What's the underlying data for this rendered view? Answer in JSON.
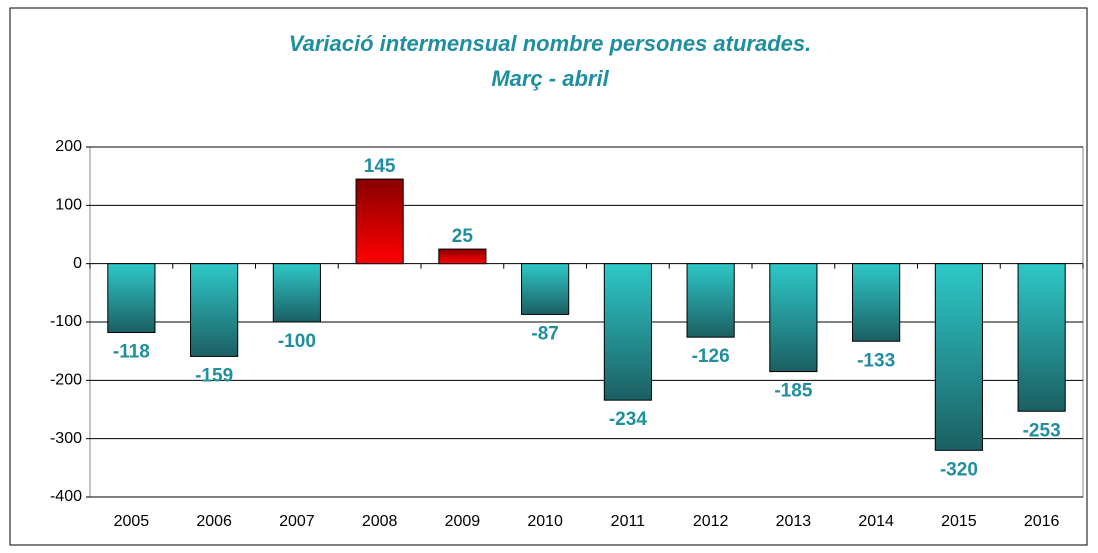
{
  "chart_data": {
    "type": "bar",
    "title": "Variació intermensual nombre persones aturades.",
    "subtitle": "Març - abril",
    "categories": [
      "2005",
      "2006",
      "2007",
      "2008",
      "2009",
      "2010",
      "2011",
      "2012",
      "2013",
      "2014",
      "2015",
      "2016"
    ],
    "values": [
      -118,
      -159,
      -100,
      145,
      25,
      -87,
      -234,
      -126,
      -185,
      -133,
      -320,
      -253
    ],
    "color": "#2ec8c8",
    "positive_color": "#ff0000",
    "ylim": [
      -400,
      200
    ],
    "yticks": [
      -400,
      -300,
      -200,
      -100,
      0,
      100,
      200
    ],
    "grid": true
  }
}
